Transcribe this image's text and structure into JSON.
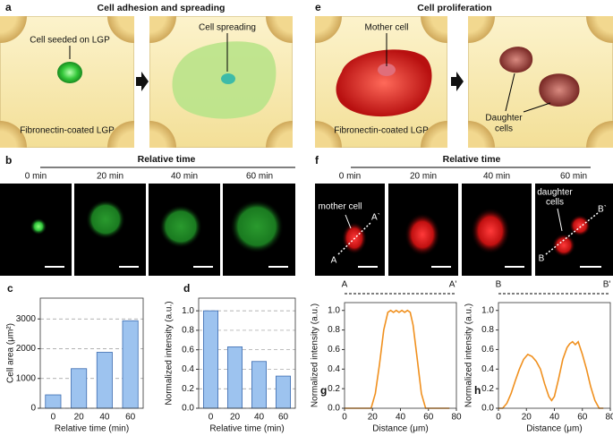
{
  "panel_a": {
    "letter": "a",
    "title": "Cell adhesion and spreading",
    "label_seeded": "Cell seeded on LGP",
    "label_spreading": "Cell spreading",
    "substrate": "Fibronectin-coated LGP"
  },
  "panel_e": {
    "letter": "e",
    "title": "Cell proliferation",
    "label_mother": "Mother cell",
    "substrate": "Fibronectin-coated LGP",
    "label_daughter": [
      "Daughter",
      "cells"
    ]
  },
  "panel_b": {
    "letter": "b",
    "header": "Relative time",
    "times": [
      "0 min",
      "20 min",
      "40 min",
      "60 min"
    ]
  },
  "panel_f": {
    "letter": "f",
    "header": "Relative time",
    "times": [
      "0 min",
      "20 min",
      "40 min",
      "60 min"
    ],
    "mother": "mother cell",
    "daughter": [
      "daughter",
      "cells"
    ],
    "start_a": "A",
    "end_a": "A`",
    "start_b": "B",
    "end_b": "B`"
  },
  "chart_data": [
    {
      "type": "bar",
      "letter": "c",
      "ylabel": "Cell area (μm²)",
      "xlabel": "Relative time (min)",
      "categories": [
        "0",
        "20",
        "40",
        "60"
      ],
      "values": [
        450,
        1330,
        1880,
        2940
      ],
      "color": "#9dc3ef",
      "ylim": [
        0,
        3700
      ],
      "yticks": [
        0,
        1000,
        2000,
        3000
      ],
      "grid": true
    },
    {
      "type": "bar",
      "letter": "d",
      "ylabel": "Normalized intensity (a.u.)",
      "xlabel": "Relative time (min)",
      "categories": [
        "0",
        "20",
        "40",
        "60"
      ],
      "values": [
        1.0,
        0.63,
        0.48,
        0.33
      ],
      "color": "#9dc3ef",
      "ylim": [
        0,
        1.13
      ],
      "yticks": [
        {
          "value": 0,
          "label": "0.0"
        },
        {
          "value": 0.2,
          "label": "0.2"
        },
        {
          "value": 0.4,
          "label": "0.4"
        },
        {
          "value": 0.6,
          "label": "0.6"
        },
        {
          "value": 0.8,
          "label": "0.8"
        },
        {
          "value": 1,
          "label": "1.0"
        }
      ],
      "grid": true
    },
    {
      "type": "line",
      "letter": "g",
      "ylabel": "Normalized intensity (a.u.)",
      "xlabel": "Distance (μm)",
      "line_ends": [
        "A",
        "A'"
      ],
      "color": "#f0901e",
      "x": [
        0,
        5,
        10,
        15,
        19,
        22,
        25,
        28,
        31,
        33,
        35,
        37,
        39,
        41,
        43,
        45,
        47,
        49,
        52,
        55,
        58,
        62,
        67,
        72,
        75
      ],
      "y": [
        0,
        0,
        0,
        0,
        0,
        0.15,
        0.45,
        0.8,
        0.98,
        1.0,
        0.98,
        1.0,
        0.98,
        1.0,
        0.98,
        1.0,
        0.98,
        0.85,
        0.5,
        0.15,
        0,
        0,
        0,
        0,
        0
      ],
      "xlim": [
        0,
        80
      ],
      "xticks": [
        0,
        20,
        40,
        60,
        80
      ],
      "ylim": [
        0,
        1.08
      ],
      "yticks": [
        {
          "value": 0,
          "label": "0.0"
        },
        {
          "value": 0.2,
          "label": "0.2"
        },
        {
          "value": 0.4,
          "label": "0.4"
        },
        {
          "value": 0.6,
          "label": "0.6"
        },
        {
          "value": 0.8,
          "label": "0.8"
        },
        {
          "value": 1,
          "label": "1.0"
        }
      ],
      "grid": false
    },
    {
      "type": "line",
      "letter": "h",
      "ylabel": "Normalized intensity (a.u.)",
      "xlabel": "Distance (μm)",
      "line_ends": [
        "B",
        "B'"
      ],
      "color": "#f0901e",
      "x": [
        0,
        3,
        6,
        9,
        12,
        15,
        18,
        21,
        24,
        27,
        30,
        33,
        36,
        38,
        40,
        43,
        46,
        49,
        51,
        53,
        55,
        57,
        60,
        63,
        66,
        69,
        72,
        75
      ],
      "y": [
        0,
        0,
        0.05,
        0.15,
        0.28,
        0.4,
        0.5,
        0.55,
        0.53,
        0.48,
        0.4,
        0.25,
        0.12,
        0.08,
        0.12,
        0.3,
        0.5,
        0.62,
        0.66,
        0.68,
        0.65,
        0.68,
        0.55,
        0.4,
        0.22,
        0.08,
        0,
        0
      ],
      "xlim": [
        0,
        80
      ],
      "xticks": [
        0,
        20,
        40,
        60,
        80
      ],
      "ylim": [
        0,
        1.08
      ],
      "yticks": [
        {
          "value": 0,
          "label": "0.0"
        },
        {
          "value": 0.2,
          "label": "0.2"
        },
        {
          "value": 0.4,
          "label": "0.4"
        },
        {
          "value": 0.6,
          "label": "0.6"
        },
        {
          "value": 0.8,
          "label": "0.8"
        },
        {
          "value": 1,
          "label": "1.0"
        }
      ],
      "grid": false
    }
  ]
}
